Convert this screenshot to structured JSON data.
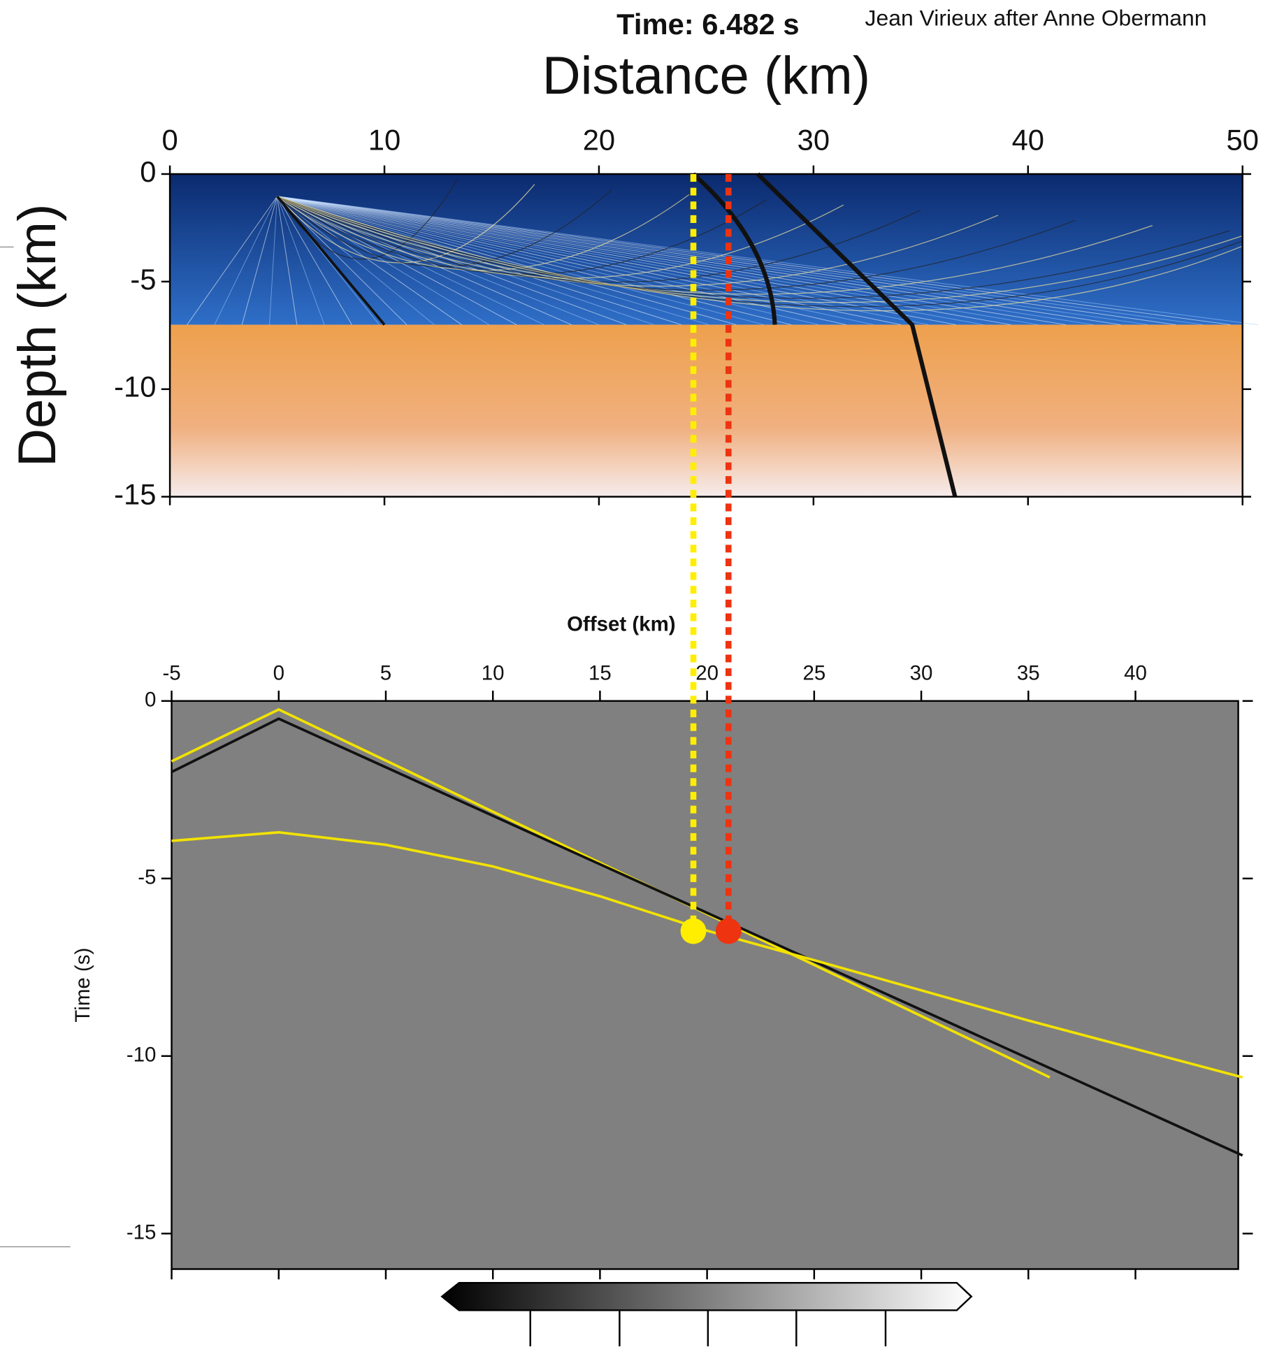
{
  "title": "Time: 6.482  s",
  "credit": "Jean Virieux after Anne Obermann",
  "chart_data": [
    {
      "type": "model",
      "xlabel": "Distance (km)",
      "ylabel": "Depth (km)",
      "xlim": [
        0,
        50
      ],
      "xticks": [
        0,
        10,
        20,
        30,
        40,
        50
      ],
      "ylim": [
        -15,
        0
      ],
      "yticks": [
        0,
        -5,
        -10,
        -15
      ]
    },
    {
      "type": "line",
      "xlabel": "Offset (km)",
      "ylabel": "Time (s)",
      "xlim": [
        -5,
        45
      ],
      "xticks": [
        -5,
        0,
        5,
        10,
        15,
        20,
        25,
        30,
        35,
        40
      ],
      "ylim": [
        -16,
        0
      ],
      "yticks": [
        0,
        -5,
        -10,
        -15
      ],
      "series": [
        {
          "color": "#f2e200",
          "x": [
            -5,
            0,
            36
          ],
          "values": [
            -1.7,
            -0.24,
            -10.6
          ]
        },
        {
          "color": "#111111",
          "x": [
            -5,
            0,
            45
          ],
          "values": [
            -2.0,
            -0.5,
            -12.8
          ]
        },
        {
          "color": "#f2e200",
          "x": [
            -5,
            0,
            5,
            10,
            15,
            20,
            25,
            30,
            35,
            40,
            45
          ],
          "values": [
            -3.94,
            -3.7,
            -4.05,
            -4.66,
            -5.5,
            -6.47,
            -7.3,
            -8.15,
            -9.0,
            -9.8,
            -10.6
          ]
        }
      ],
      "picks": {
        "x": [
          19.36,
          21.0
        ],
        "values": [
          -6.482,
          -6.482
        ],
        "colors": [
          "#ffee00",
          "#ee3311"
        ]
      }
    }
  ]
}
